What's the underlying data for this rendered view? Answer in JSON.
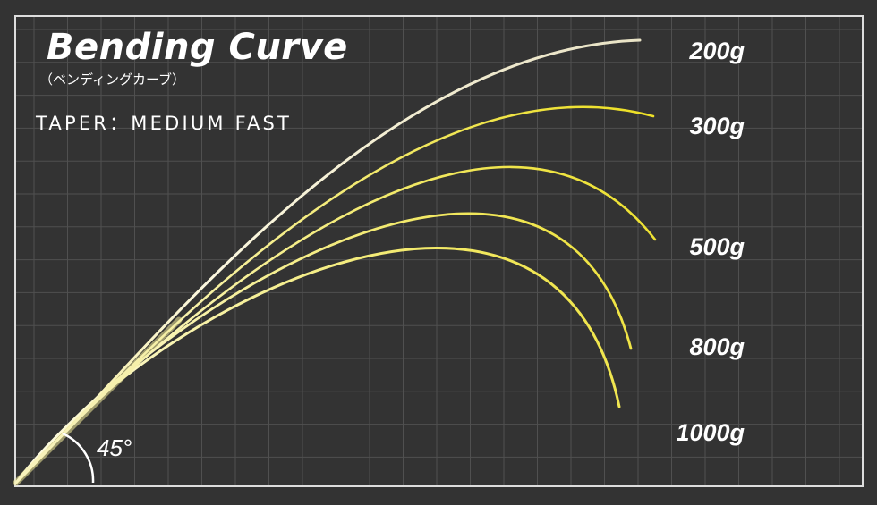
{
  "title": "Bending Curve",
  "subtitle": "（ベンディングカーブ）",
  "taper_text": "TAPER：MEDIUM FAST",
  "colors": {
    "background": "#333333",
    "grid": "#505050",
    "frame": "#dddddd",
    "curve_light": "#fdfbe6",
    "curve_yellow": "#ede028"
  },
  "chart_data": {
    "type": "line",
    "title": "Bending Curve",
    "grid": true,
    "start_angle_label": "45°",
    "series": [
      {
        "name": "200g"
      },
      {
        "name": "300g"
      },
      {
        "name": "500g"
      },
      {
        "name": "800g"
      },
      {
        "name": "1000g"
      }
    ]
  }
}
